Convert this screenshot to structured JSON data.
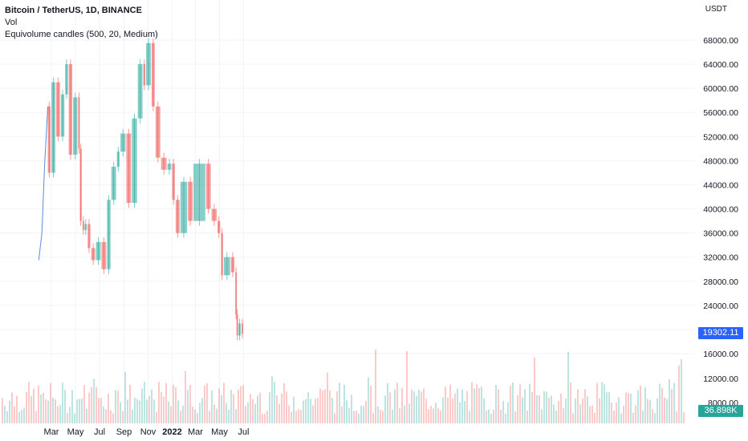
{
  "legend": {
    "title": "Bitcoin / TetherUS, 1D, BINANCE",
    "vol": "Vol",
    "indicator": "Equivolume candles (500, 20, Medium)"
  },
  "axis_unit": "USDT",
  "last_price": "19302.11",
  "last_volume": "36.898K",
  "colors": {
    "up": "#26a69a",
    "down": "#ef5350",
    "line": "#5b8bd9",
    "last_price_tag": "#2962ff",
    "last_volume_tag": "#26a69a"
  },
  "chart_data": {
    "type": "line",
    "title": "Bitcoin / TetherUS, 1D, BINANCE",
    "price_axis": {
      "ticks": [
        "68000.00",
        "64000.00",
        "60000.00",
        "56000.00",
        "52000.00",
        "48000.00",
        "44000.00",
        "40000.00",
        "36000.00",
        "32000.00",
        "28000.00",
        "24000.00",
        "20000.00",
        "16000.00"
      ],
      "ylim": [
        16000,
        68000
      ]
    },
    "volume_axis": {
      "ticks": [
        "12000.00",
        "8000.00"
      ]
    },
    "x_ticks": [
      "Mar",
      "May",
      "Jul",
      "Sep",
      "Nov",
      "2022",
      "Mar",
      "May",
      "Jul"
    ],
    "series": [
      {
        "x": [
          "2021-01-28",
          "2021-02-05",
          "2021-02-12",
          "2021-02-20",
          "2021-03-01",
          "2021-03-13",
          "2021-03-25",
          "2021-04-05",
          "2021-04-14",
          "2021-04-25",
          "2021-05-08",
          "2021-05-12",
          "2021-05-19",
          "2021-05-24",
          "2021-06-01",
          "2021-06-10",
          "2021-06-22",
          "2021-07-06",
          "2021-07-20",
          "2021-07-31",
          "2021-08-14",
          "2021-08-23",
          "2021-09-07",
          "2021-09-21",
          "2021-10-06",
          "2021-10-20",
          "2021-10-27",
          "2021-11-10",
          "2021-11-20",
          "2021-12-04",
          "2021-12-20",
          "2022-01-01",
          "2022-01-10",
          "2022-01-22",
          "2022-02-10",
          "2022-02-24",
          "2022-03-28",
          "2022-04-11",
          "2022-04-26",
          "2022-05-05",
          "2022-05-12",
          "2022-05-30",
          "2022-06-10",
          "2022-06-13",
          "2022-06-18",
          "2022-06-26",
          "2022-07-01"
        ],
        "values": [
          31500,
          36000,
          47500,
          57000,
          46000,
          61000,
          52000,
          59000,
          64000,
          49000,
          58500,
          50000,
          38000,
          36500,
          37500,
          33500,
          31500,
          34500,
          30000,
          41500,
          47000,
          49500,
          52500,
          41000,
          55000,
          64000,
          60500,
          67500,
          57000,
          48500,
          46500,
          47500,
          41500,
          36000,
          44500,
          38000,
          47500,
          40000,
          38000,
          36000,
          29000,
          32000,
          29500,
          22500,
          19000,
          21000,
          19300
        ]
      }
    ]
  }
}
